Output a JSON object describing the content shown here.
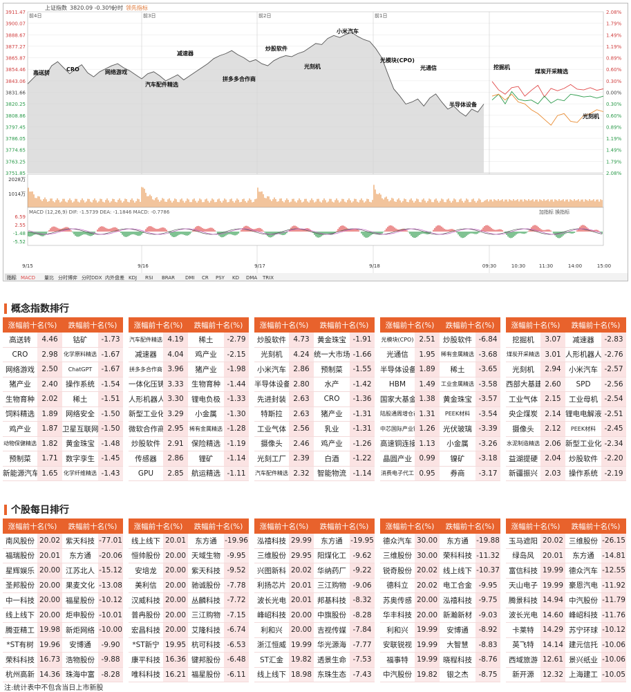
{
  "chart_header": {
    "index_name": "上证指数",
    "index_value": "3820.09 -0.30%",
    "mode": "分时",
    "leader_label": "领先指标"
  },
  "chart_data": {
    "type": "line",
    "ylim": [
      3751.85,
      3911.47
    ],
    "y_ticks_left": [
      "3911.47",
      "3900.07",
      "3888.67",
      "3877.27",
      "3865.87",
      "3854.46",
      "3843.06",
      "3831.66",
      "3820.25",
      "3808.86",
      "3797.45",
      "3786.05",
      "3774.65",
      "3763.25",
      "3751.85"
    ],
    "y_ticks_right": [
      "2.08%",
      "1.79%",
      "1.49%",
      "1.19%",
      "0.89%",
      "0.60%",
      "0.30%",
      "0.00%",
      "0.30%",
      "0.60%",
      "0.89%",
      "1.19%",
      "1.49%",
      "1.79%",
      "2.08%"
    ],
    "day_labels": [
      "前4日",
      "前3日",
      "前2日",
      "前1日"
    ],
    "x_labels": [
      "9/15",
      "9/16",
      "9/17",
      "9/18",
      "09:30",
      "10:30",
      "11:30",
      "14:00",
      "15:00"
    ],
    "series_close": [
      3840,
      3846,
      3852,
      3848,
      3858,
      3862,
      3856,
      3850,
      3855,
      3859,
      3851,
      3847,
      3852,
      3855,
      3858,
      3860,
      3856,
      3853,
      3849,
      3845,
      3850,
      3852,
      3848,
      3843,
      3846,
      3849,
      3844,
      3848,
      3852,
      3856,
      3860,
      3865,
      3868,
      3870,
      3873,
      3869,
      3866,
      3862,
      3864,
      3860,
      3858,
      3863,
      3866,
      3868,
      3867,
      3870,
      3872,
      3876,
      3880,
      3879,
      3885,
      3888,
      3886,
      3889,
      3891,
      3887,
      3884,
      3882,
      3875,
      3866,
      3850,
      3835,
      3828,
      3820,
      3822,
      3825,
      3818,
      3826,
      3830,
      3822,
      3815,
      3818,
      3812,
      3808,
      3815,
      3812,
      3820
    ],
    "today_red": [
      0.28,
      0.06,
      -0.05,
      0.12,
      0.15,
      -0.1,
      0.05,
      0.18,
      -0.12,
      0.1,
      0.04,
      0.1,
      0.2,
      0.08,
      0.06,
      0.12,
      0.05,
      0.09
    ],
    "today_green": [
      -0.2,
      -0.05,
      -0.3,
      0.02,
      -0.18,
      -0.22,
      -0.2,
      -0.3,
      -0.1,
      -0.28,
      -0.18,
      -0.22,
      -0.05,
      -0.08,
      -0.12,
      -0.1,
      -0.15,
      -0.1
    ],
    "today_orange": [
      -0.1,
      -0.05,
      -0.2,
      -0.05,
      -0.25,
      -0.3,
      -0.45,
      -0.55,
      -0.7,
      -0.85,
      -0.6,
      -0.55,
      -0.75,
      -0.78,
      -0.6,
      -0.55,
      -0.45,
      -0.5
    ],
    "volume_labels": [
      "2028万",
      "1014万"
    ],
    "macd_header": "MACD (12,26,9)  DIF: -1.5739  DEA: -1.1846  MACD: -0.7786",
    "macd_ticks": [
      "6.59",
      "2.55",
      "-1.48",
      "-5.52"
    ],
    "annotations": [
      "高送转",
      "CRO",
      "网络游戏",
      "汽车配件精选",
      "减速器",
      "拼多多合作商",
      "炒股软件",
      "光刻机",
      "小米汽车",
      "光模块(CPO)",
      "光通信",
      "半导体设备",
      "挖掘机",
      "煤炭开采精选",
      "光刻机"
    ],
    "toolbar_right": "加指标 换指标",
    "tabs": [
      "指标",
      "MACD",
      "量比",
      "分时博弈",
      "分时DDX",
      "内外盘差",
      "KDJ",
      "RSI",
      "BRAR",
      "DMI",
      "CR",
      "PSY",
      "KD",
      "DMA",
      "TRIX"
    ]
  },
  "section1": {
    "title": "概念指数排行"
  },
  "section2": {
    "title": "个股每日排行"
  },
  "table_headers": {
    "up": "涨幅前十名(%)",
    "down": "跌幅前十名(%)"
  },
  "concept_panels": [
    {
      "rows": [
        [
          "高送转",
          "4.46",
          "钴矿",
          "-1.73"
        ],
        [
          "CRO",
          "2.98",
          "化学原料精选",
          "-1.67"
        ],
        [
          "网络游戏",
          "2.50",
          "ChatGPT",
          "-1.67"
        ],
        [
          "猪产业",
          "2.40",
          "操作系统",
          "-1.54"
        ],
        [
          "生物育种",
          "2.02",
          "稀土",
          "-1.51"
        ],
        [
          "饲料精选",
          "1.89",
          "网络安全",
          "-1.50"
        ],
        [
          "鸡产业",
          "1.87",
          "卫星互联网",
          "-1.50"
        ],
        [
          "动物保健精选",
          "1.82",
          "黄金珠宝",
          "-1.48"
        ],
        [
          "预制菜",
          "1.71",
          "数字孪生",
          "-1.45"
        ],
        [
          "新能源汽车",
          "1.65",
          "化学纤维精选",
          "-1.43"
        ]
      ]
    },
    {
      "rows": [
        [
          "汽车配件精选",
          "4.19",
          "稀土",
          "-2.79"
        ],
        [
          "减速器",
          "4.04",
          "鸡产业",
          "-2.15"
        ],
        [
          "拼多多合作商",
          "3.96",
          "猪产业",
          "-1.98"
        ],
        [
          "一体化压铸",
          "3.33",
          "生物育种",
          "-1.44"
        ],
        [
          "人形机器人",
          "3.30",
          "锂电负极",
          "-1.33"
        ],
        [
          "新型工业化",
          "3.29",
          "小金属",
          "-1.30"
        ],
        [
          "微软合作商",
          "2.95",
          "稀有金属精选",
          "-1.28"
        ],
        [
          "炒股软件",
          "2.91",
          "保险精选",
          "-1.19"
        ],
        [
          "传感器",
          "2.86",
          "锂矿",
          "-1.14"
        ],
        [
          "GPU",
          "2.85",
          "航运精选",
          "-1.11"
        ]
      ]
    },
    {
      "rows": [
        [
          "炒股软件",
          "4.73",
          "黄金珠宝",
          "-1.91"
        ],
        [
          "光刻机",
          "4.24",
          "统一大市场",
          "-1.66"
        ],
        [
          "小米汽车",
          "2.86",
          "预制菜",
          "-1.55"
        ],
        [
          "半导体设备",
          "2.80",
          "水产",
          "-1.42"
        ],
        [
          "先进封装",
          "2.63",
          "CRO",
          "-1.36"
        ],
        [
          "特斯拉",
          "2.63",
          "猪产业",
          "-1.31"
        ],
        [
          "工业气体",
          "2.56",
          "乳业",
          "-1.31"
        ],
        [
          "摄像头",
          "2.46",
          "鸡产业",
          "-1.26"
        ],
        [
          "光刻工厂",
          "2.39",
          "白酒",
          "-1.22"
        ],
        [
          "汽车配件精选",
          "2.32",
          "智能物流",
          "-1.14"
        ]
      ]
    },
    {
      "rows": [
        [
          "光模块(CPO)",
          "2.51",
          "炒股软件",
          "-6.84"
        ],
        [
          "光通信",
          "1.95",
          "稀有金属精选",
          "-3.68"
        ],
        [
          "半导体设备",
          "1.89",
          "稀土",
          "-3.65"
        ],
        [
          "HBM",
          "1.49",
          "工业金属精选",
          "-3.58"
        ],
        [
          "国家大基金",
          "1.38",
          "黄金珠宝",
          "-3.57"
        ],
        [
          "陆股通周增仓前二十",
          "1.31",
          "PEEK材料",
          "-3.54"
        ],
        [
          "中芯国际产业链",
          "1.26",
          "光伏玻璃",
          "-3.39"
        ],
        [
          "高速铜连接",
          "1.13",
          "小金属",
          "-3.26"
        ],
        [
          "晶圆产业",
          "0.99",
          "镍矿",
          "-3.18"
        ],
        [
          "消费电子代工",
          "0.95",
          "券商",
          "-3.17"
        ]
      ]
    },
    {
      "rows": [
        [
          "挖掘机",
          "3.07",
          "减速器",
          "-2.83"
        ],
        [
          "煤炭开采精选",
          "3.01",
          "人形机器人",
          "-2.76"
        ],
        [
          "光刻机",
          "2.94",
          "小米汽车",
          "-2.57"
        ],
        [
          "西部大基建",
          "2.60",
          "SPD",
          "-2.56"
        ],
        [
          "工业气体",
          "2.15",
          "工业母机",
          "-2.54"
        ],
        [
          "央企煤炭",
          "2.14",
          "锂电电解液",
          "-2.51"
        ],
        [
          "摄像头",
          "2.12",
          "PEEK材料",
          "-2.45"
        ],
        [
          "水泥制造精选",
          "2.06",
          "新型工业化",
          "-2.34"
        ],
        [
          "益湖提硬",
          "2.04",
          "炒股软件",
          "-2.20"
        ],
        [
          "新疆振兴",
          "2.03",
          "操作系统",
          "-2.19"
        ]
      ]
    }
  ],
  "stock_panels": [
    {
      "rows": [
        [
          "南风股份",
          "20.02",
          "紫天科技",
          "-77.01"
        ],
        [
          "福瑞股份",
          "20.01",
          "东方通",
          "-20.06"
        ],
        [
          "星辉娱乐",
          "20.00",
          "江苏北人",
          "-15.12"
        ],
        [
          "圣邦股份",
          "20.00",
          "果麦文化",
          "-13.08"
        ],
        [
          "中一科技",
          "20.00",
          "福星股份",
          "-10.12"
        ],
        [
          "线上线下",
          "20.00",
          "炬申股份",
          "-10.01"
        ],
        [
          "腾亚精工",
          "19.98",
          "新炬网络",
          "-10.00"
        ],
        [
          "*ST有树",
          "19.96",
          "安博通",
          "-9.90"
        ],
        [
          "荣科科技",
          "16.73",
          "浩物股份",
          "-9.88"
        ],
        [
          "杭州高新",
          "14.36",
          "珠海中富",
          "-8.28"
        ]
      ]
    },
    {
      "rows": [
        [
          "线上线下",
          "20.01",
          "东方通",
          "-19.96"
        ],
        [
          "恒帅股份",
          "20.00",
          "天域生物",
          "-9.95"
        ],
        [
          "安培龙",
          "20.00",
          "紫天科技",
          "-9.52"
        ],
        [
          "美利信",
          "20.00",
          "驰诚股份",
          "-7.78"
        ],
        [
          "汉威科技",
          "20.00",
          "丛麟科技",
          "-7.72"
        ],
        [
          "普冉股份",
          "20.00",
          "三江购物",
          "-7.15"
        ],
        [
          "宏昌科技",
          "20.00",
          "艾隆科技",
          "-6.74"
        ],
        [
          "*ST新宁",
          "19.95",
          "杭可科技",
          "-6.53"
        ],
        [
          "康平科技",
          "16.36",
          "键邦股份",
          "-6.48"
        ],
        [
          "唯科科技",
          "16.21",
          "福星股份",
          "-6.11"
        ]
      ]
    },
    {
      "rows": [
        [
          "泓禧科技",
          "29.99",
          "东方通",
          "-19.95"
        ],
        [
          "三维股份",
          "29.95",
          "阳煤化工",
          "-9.62"
        ],
        [
          "兴图新科",
          "20.02",
          "华纳药厂",
          "-9.22"
        ],
        [
          "利扬芯片",
          "20.01",
          "三江购物",
          "-9.06"
        ],
        [
          "波长光电",
          "20.01",
          "邦基科技",
          "-8.32"
        ],
        [
          "峰岹科技",
          "20.00",
          "中旗股份",
          "-8.28"
        ],
        [
          "利和兴",
          "20.00",
          "吉视传媒",
          "-7.84"
        ],
        [
          "浙江恒威",
          "19.99",
          "华光源海",
          "-7.77"
        ],
        [
          "ST汇金",
          "19.82",
          "透景生命",
          "-7.53"
        ],
        [
          "线上线下",
          "18.98",
          "东珠生态",
          "-7.43"
        ]
      ]
    },
    {
      "rows": [
        [
          "德众汽车",
          "30.00",
          "东方通",
          "-19.88"
        ],
        [
          "三维股份",
          "30.00",
          "荣科科技",
          "-11.32"
        ],
        [
          "锐奇股份",
          "20.02",
          "线上线下",
          "-10.37"
        ],
        [
          "德科立",
          "20.02",
          "电工合金",
          "-9.95"
        ],
        [
          "苏奥传感",
          "20.00",
          "泓禧科技",
          "-9.75"
        ],
        [
          "华丰科技",
          "20.00",
          "新瀚新材",
          "-9.03"
        ],
        [
          "利和兴",
          "19.99",
          "安博通",
          "-8.92"
        ],
        [
          "安联锐视",
          "19.99",
          "大智慧",
          "-8.83"
        ],
        [
          "福事特",
          "19.99",
          "晓程科技",
          "-8.76"
        ],
        [
          "中汽股份",
          "19.82",
          "银之杰",
          "-8.75"
        ]
      ]
    },
    {
      "rows": [
        [
          "玉马遮阳",
          "20.02",
          "三维股份",
          "-26.15"
        ],
        [
          "绿岛风",
          "20.01",
          "东方通",
          "-14.81"
        ],
        [
          "富信科技",
          "19.99",
          "德众汽车",
          "-12.55"
        ],
        [
          "天山电子",
          "19.99",
          "豪恩汽电",
          "-11.92"
        ],
        [
          "腾景科技",
          "14.94",
          "中汽股份",
          "-11.79"
        ],
        [
          "波长光电",
          "14.60",
          "峰岹科技",
          "-11.76"
        ],
        [
          "卡莱特",
          "14.29",
          "苏宁环球",
          "-10.12"
        ],
        [
          "英飞特",
          "14.14",
          "建元信托",
          "-10.06"
        ],
        [
          "西域旅游",
          "12.61",
          "景兴纸业",
          "-10.06"
        ],
        [
          "新开源",
          "12.32",
          "上海建工",
          "-10.05"
        ]
      ]
    }
  ],
  "footnote": "注:统计表中不包含当日上市新股"
}
